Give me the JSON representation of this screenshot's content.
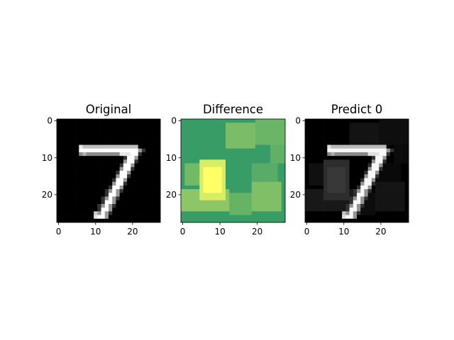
{
  "chart_data": [
    {
      "type": "heatmap",
      "title": "Original",
      "colormap": "gray",
      "image_size": [
        28,
        28
      ],
      "xticks": [
        0,
        10,
        20
      ],
      "yticks": [
        0,
        10,
        20
      ],
      "xlim": [
        -0.5,
        27.5
      ],
      "ylim": [
        27.5,
        -0.5
      ],
      "description_values": "28x28 grayscale digit '7': horizontal stroke rows 7-9 cols 6-21, diagonal stroke down to row 26 col 11-13"
    },
    {
      "type": "heatmap",
      "title": "Difference",
      "colormap": "summer",
      "image_size": [
        28,
        28
      ],
      "xticks": [
        0,
        10,
        20
      ],
      "yticks": [
        0,
        10,
        20
      ],
      "xlim": [
        -0.5,
        27.5
      ],
      "ylim": [
        27.5,
        -0.5
      ]
    },
    {
      "type": "heatmap",
      "title": "Predict 0",
      "colormap": "gray",
      "image_size": [
        28,
        28
      ],
      "xticks": [
        0,
        10,
        20
      ],
      "yticks": [
        0,
        10,
        20
      ],
      "xlim": [
        -0.5,
        27.5
      ],
      "ylim": [
        27.5,
        -0.5
      ]
    }
  ]
}
